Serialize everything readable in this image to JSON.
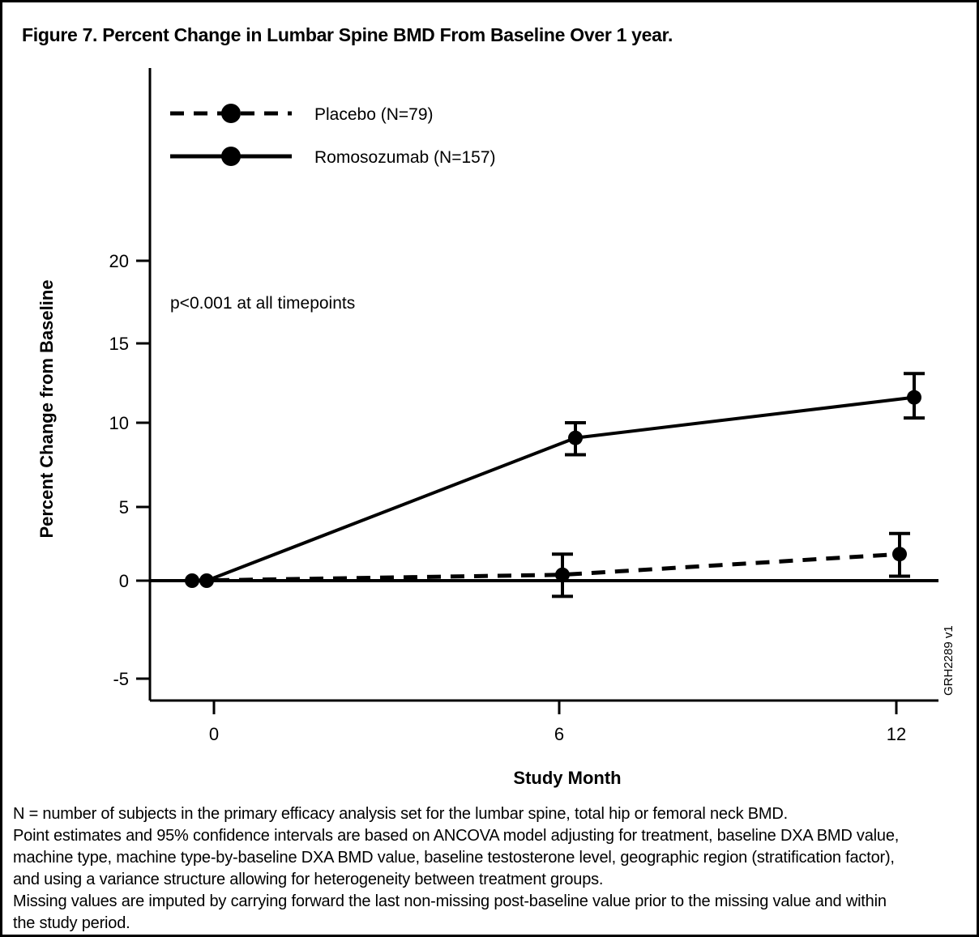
{
  "figure": {
    "title": "Figure 7. Percent Change in Lumbar Spine BMD From Baseline Over 1 year."
  },
  "chart_data": {
    "type": "line",
    "title": "Figure 7. Percent Change in Lumbar Spine BMD From Baseline Over 1 year.",
    "xlabel": "Study Month",
    "ylabel": "Percent Change from Baseline",
    "x": [
      0,
      6,
      12
    ],
    "x_tick_labels": [
      "0",
      "6",
      "12"
    ],
    "y_ticks": [
      20,
      15,
      10,
      5,
      0,
      -5
    ],
    "ylim": [
      -7.5,
      22.5
    ],
    "grid": false,
    "legend_position": "inside top-left",
    "annotation": "p<0.001 at all timepoints",
    "plot_id_label": "GRH2289 v1",
    "reference_line_y": 0,
    "error_bars": "95% confidence intervals",
    "series": [
      {
        "name": "Placebo (N=79)",
        "style": "dashed",
        "marker": "filled-circle",
        "color": "#000000",
        "values": [
          0,
          0.4,
          1.8
        ],
        "ci_lower": [
          null,
          -0.8,
          0.3
        ],
        "ci_upper": [
          null,
          1.8,
          3.2
        ]
      },
      {
        "name": "Romosozumab (N=157)",
        "style": "solid",
        "marker": "filled-circle",
        "color": "#000000",
        "values": [
          0,
          9.1,
          11.6
        ],
        "ci_lower": [
          null,
          8.1,
          10.3
        ],
        "ci_upper": [
          null,
          10.0,
          13.1
        ]
      }
    ]
  },
  "footnote": {
    "lines": [
      "N = number of subjects in the primary efficacy analysis set for the lumbar spine, total hip or femoral neck BMD.",
      "Point estimates and 95% confidence intervals are based on ANCOVA model adjusting for treatment, baseline DXA BMD value,",
      "machine type, machine type-by-baseline DXA BMD value, baseline testosterone level, geographic region (stratification factor),",
      "and using a variance structure allowing for heterogeneity between treatment groups.",
      "Missing values are imputed by carrying forward the last non-missing post-baseline value prior to the missing value and within",
      "the study period."
    ]
  },
  "colors": {
    "ink": "#000000",
    "background": "#ffffff"
  }
}
